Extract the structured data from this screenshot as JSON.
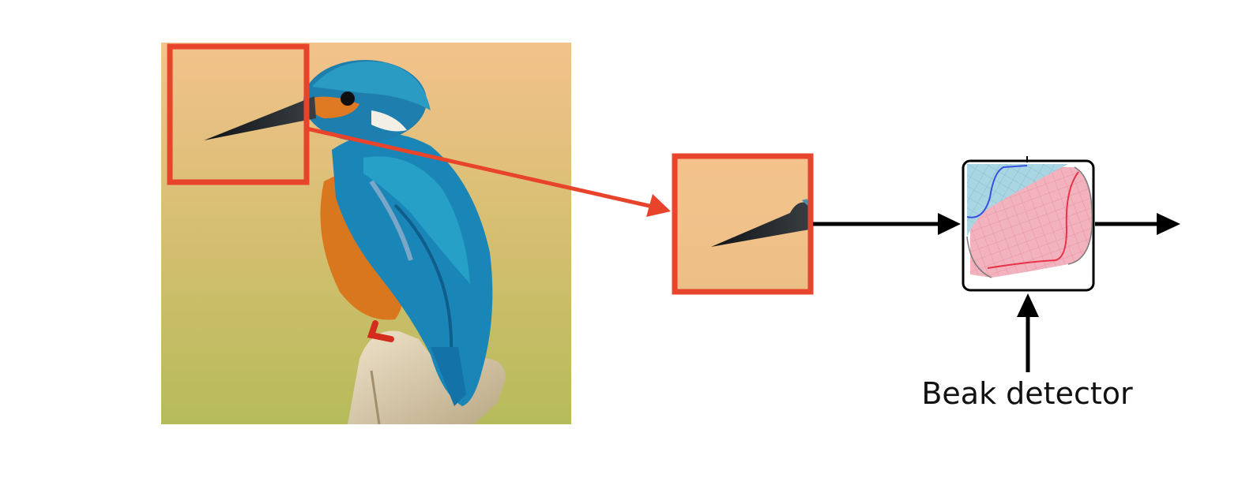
{
  "diagram": {
    "detector_label": "Beak detector",
    "colors": {
      "highlight_box": "#e8432b",
      "connector_arrow": "#e8432b",
      "flow_arrow": "#000000",
      "background_top": "#f2c08a",
      "background_bottom": "#b8bd5c",
      "bird_blue": "#1f7fb8",
      "bird_orange": "#d9771f",
      "detector_blue_region": "#a9d6e2",
      "detector_red_region": "#f2b3be",
      "detector_blue_curve": "#3a4fe0",
      "detector_red_curve": "#e8324a"
    },
    "icons": [
      "kingfisher-photo",
      "beak-crop",
      "detector-surface-icon"
    ]
  }
}
